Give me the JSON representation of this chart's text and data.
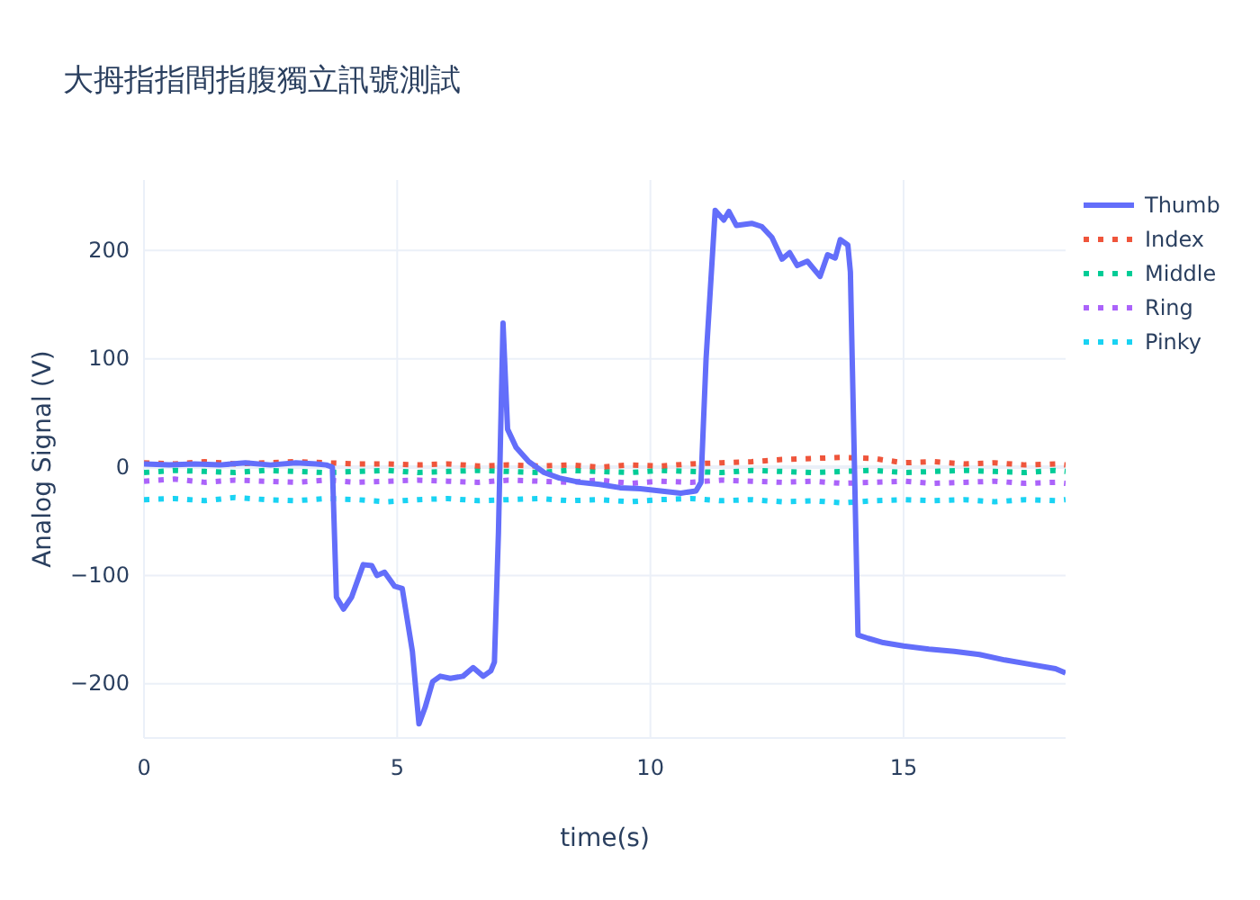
{
  "chart_data": {
    "type": "line",
    "title": "大拇指指間指腹獨立訊號測試",
    "xlabel": "time(s)",
    "ylabel": "Analog Signal (V)",
    "xlim": [
      0,
      18.2
    ],
    "ylim": [
      -250,
      265
    ],
    "xticks": [
      0,
      5,
      10,
      15
    ],
    "yticks": [
      {
        "value": -200,
        "label": "−200"
      },
      {
        "value": -100,
        "label": "−100"
      },
      0,
      100,
      200
    ],
    "grid": true,
    "legend": "top right",
    "series": [
      {
        "name": "Thumb",
        "color": "#636efa",
        "line_style": "solid",
        "x": [
          0,
          0.5,
          1,
          1.5,
          2,
          2.5,
          3,
          3.4,
          3.6,
          3.72,
          3.8,
          3.94,
          4.1,
          4.33,
          4.5,
          4.6,
          4.75,
          4.95,
          5.1,
          5.3,
          5.43,
          5.55,
          5.7,
          5.85,
          6.05,
          6.3,
          6.5,
          6.7,
          6.85,
          6.92,
          7.0,
          7.09,
          7.18,
          7.35,
          7.6,
          7.9,
          8.2,
          8.6,
          9.0,
          9.4,
          9.8,
          10.2,
          10.6,
          10.9,
          11.0,
          11.1,
          11.28,
          11.45,
          11.55,
          11.7,
          12.0,
          12.2,
          12.4,
          12.6,
          12.75,
          12.9,
          13.1,
          13.35,
          13.5,
          13.65,
          13.75,
          13.9,
          13.95,
          14.1,
          14.3,
          14.6,
          15.0,
          15.5,
          16.0,
          16.5,
          17.0,
          17.5,
          18.0,
          18.2
        ],
        "values": [
          3,
          2,
          3,
          2,
          4,
          2,
          4,
          3,
          2,
          0,
          -120,
          -131,
          -120,
          -90,
          -91,
          -100,
          -97,
          -110,
          -112,
          -170,
          -237,
          -222,
          -198,
          -193,
          -195,
          -193,
          -185,
          -193,
          -188,
          -180,
          -60,
          133,
          35,
          18,
          5,
          -5,
          -10,
          -14,
          -16,
          -19,
          -20,
          -22,
          -24,
          -22,
          -14,
          100,
          237,
          228,
          236,
          223,
          225,
          222,
          212,
          192,
          198,
          186,
          190,
          176,
          196,
          193,
          210,
          205,
          180,
          -155,
          -158,
          -162,
          -165,
          -168,
          -170,
          -173,
          -178,
          -182,
          -186,
          -190
        ]
      },
      {
        "name": "Index",
        "color": "#ef553b",
        "line_style": "dotted",
        "x": [
          0,
          0.6,
          1.2,
          1.8,
          2.4,
          3,
          3.6,
          4.2,
          4.8,
          5.4,
          6,
          6.6,
          7.2,
          7.8,
          8.4,
          9,
          9.6,
          10.2,
          10.8,
          11.4,
          12,
          12.6,
          13.2,
          13.8,
          14.4,
          15,
          15.6,
          16.2,
          16.8,
          17.4,
          18,
          18.2
        ],
        "values": [
          4,
          3,
          5,
          3,
          4,
          5,
          4,
          3,
          3,
          2,
          3,
          1,
          2,
          1,
          2,
          0,
          2,
          1,
          3,
          4,
          5,
          7,
          8,
          9,
          8,
          4,
          5,
          3,
          4,
          2,
          3,
          2
        ]
      },
      {
        "name": "Middle",
        "color": "#00cc96",
        "line_style": "dotted",
        "x": [
          0,
          0.6,
          1.2,
          1.8,
          2.4,
          3,
          3.6,
          4.2,
          4.8,
          5.4,
          6,
          6.6,
          7.2,
          7.8,
          8.4,
          9,
          9.6,
          10.2,
          10.8,
          11.4,
          12,
          12.6,
          13.2,
          13.8,
          14.4,
          15,
          15.6,
          16.2,
          16.8,
          17.4,
          18,
          18.2
        ],
        "values": [
          -5,
          -3,
          -4,
          -5,
          -3,
          -4,
          -5,
          -4,
          -3,
          -5,
          -4,
          -3,
          -4,
          -5,
          -3,
          -4,
          -5,
          -3,
          -4,
          -5,
          -3,
          -4,
          -5,
          -4,
          -3,
          -5,
          -4,
          -3,
          -4,
          -5,
          -3,
          -4
        ]
      },
      {
        "name": "Ring",
        "color": "#ab63fa",
        "line_style": "dotted",
        "x": [
          0,
          0.6,
          1.2,
          1.8,
          2.4,
          3,
          3.6,
          4.2,
          4.8,
          5.4,
          6,
          6.6,
          7.2,
          7.8,
          8.4,
          9,
          9.6,
          10.2,
          10.8,
          11.4,
          12,
          12.6,
          13.2,
          13.8,
          14.4,
          15,
          15.6,
          16.2,
          16.8,
          17.4,
          18,
          18.2
        ],
        "values": [
          -13,
          -11,
          -14,
          -12,
          -13,
          -14,
          -12,
          -14,
          -13,
          -12,
          -13,
          -14,
          -12,
          -13,
          -14,
          -12,
          -15,
          -13,
          -14,
          -12,
          -13,
          -14,
          -13,
          -15,
          -14,
          -13,
          -15,
          -14,
          -13,
          -15,
          -14,
          -15
        ]
      },
      {
        "name": "Pinky",
        "color": "#19d3f3",
        "line_style": "dotted",
        "x": [
          0,
          0.6,
          1.2,
          1.8,
          2.4,
          3,
          3.6,
          4.2,
          4.8,
          5.4,
          6,
          6.6,
          7.2,
          7.8,
          8.4,
          9,
          9.6,
          10.2,
          10.8,
          11.4,
          12,
          12.6,
          13.2,
          13.8,
          14.4,
          15,
          15.6,
          16.2,
          16.8,
          17.4,
          18,
          18.2
        ],
        "values": [
          -30,
          -29,
          -31,
          -28,
          -30,
          -31,
          -29,
          -30,
          -32,
          -30,
          -29,
          -31,
          -30,
          -29,
          -31,
          -30,
          -32,
          -30,
          -29,
          -31,
          -30,
          -32,
          -31,
          -33,
          -31,
          -30,
          -31,
          -30,
          -32,
          -30,
          -31,
          -30
        ]
      }
    ]
  }
}
